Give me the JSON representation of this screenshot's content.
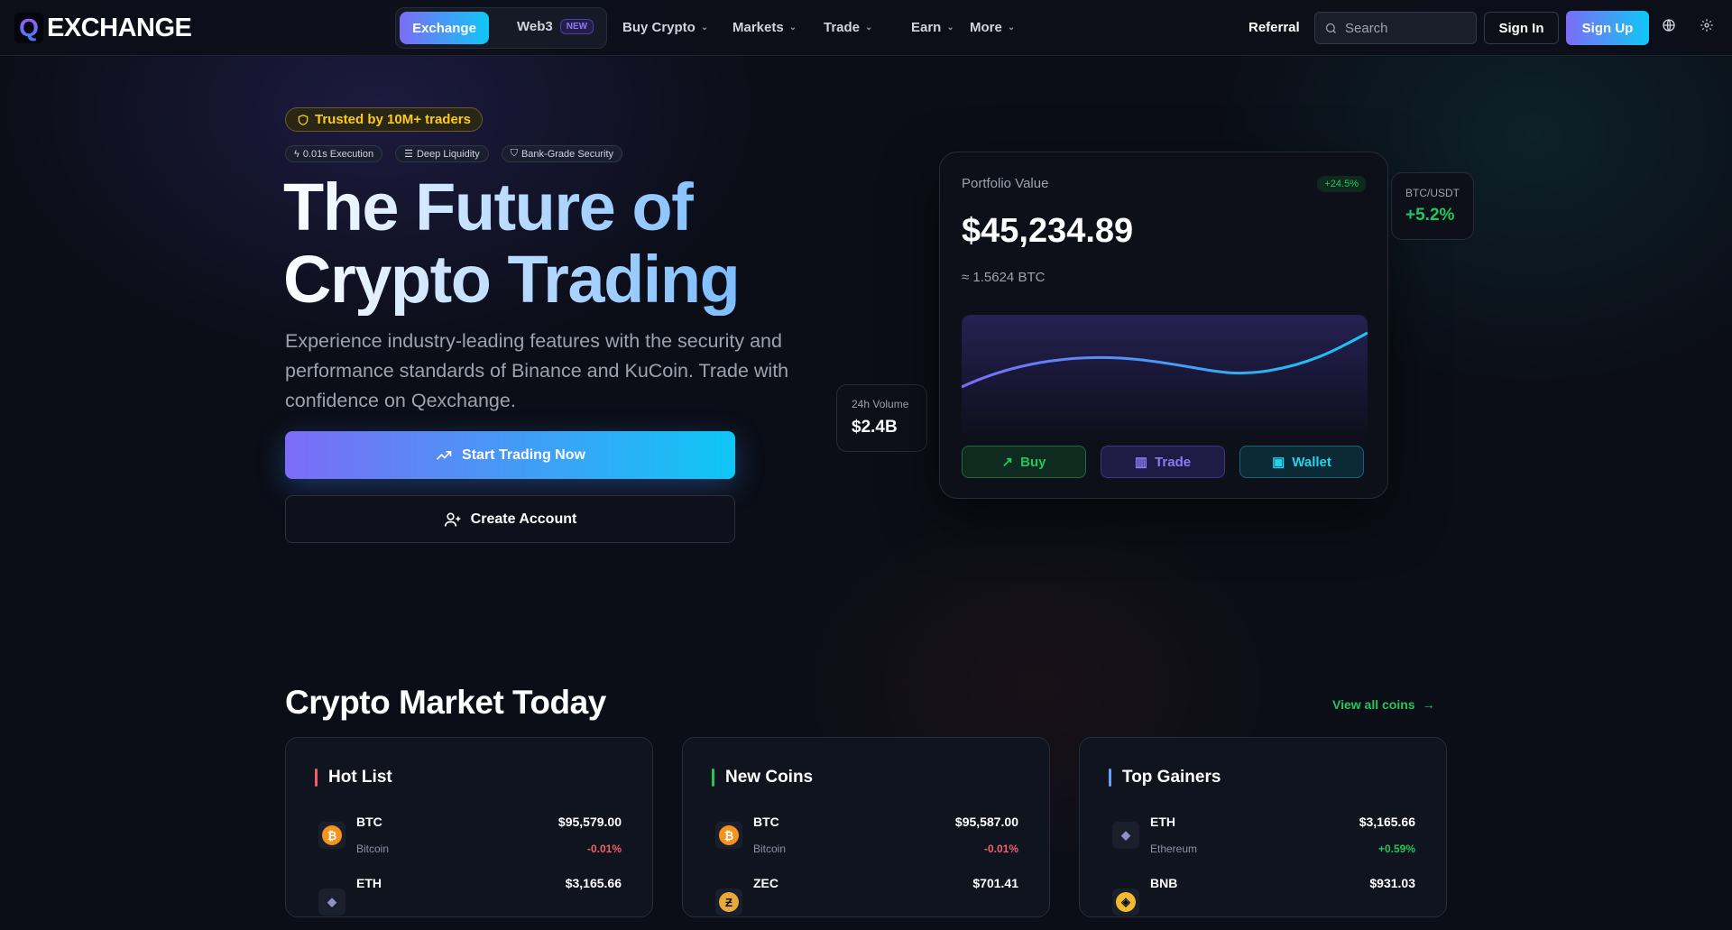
{
  "nav": {
    "logo_mark": "Q",
    "logo_text": "EXCHANGE",
    "tab_exchange": "Exchange",
    "tab_web3": "Web3",
    "web3_badge": "NEW",
    "menus": [
      {
        "label": "Buy Crypto"
      },
      {
        "label": "Markets"
      },
      {
        "label": "Trade"
      },
      {
        "label": "Earn"
      },
      {
        "label": "More"
      }
    ],
    "referral": "Referral",
    "search_placeholder": "Search",
    "sign_in": "Sign In",
    "sign_up": "Sign Up"
  },
  "hero": {
    "trusted": "Trusted by 10M+ traders",
    "chips": [
      "0.01s Execution",
      "Deep Liquidity",
      "Bank-Grade Security"
    ],
    "title_line1": "The Future of",
    "title_line2": "Crypto Trading",
    "description": "Experience industry-leading features with the security and performance standards of Binance and KuCoin. Trade with confidence on Qexchange.",
    "start_button": "Start Trading Now",
    "create_button": "Create Account"
  },
  "portfolio": {
    "label": "Portfolio Value",
    "change": "+24.5%",
    "value": "$45,234.89",
    "btc": "≈ 1.5624 BTC",
    "buy": "Buy",
    "trade": "Trade",
    "wallet": "Wallet"
  },
  "volume": {
    "label": "24h Volume",
    "value": "$2.4B"
  },
  "pair": {
    "label": "BTC/USDT",
    "change": "+5.2%"
  },
  "market": {
    "title": "Crypto Market Today",
    "view_all": "View all coins",
    "cards": [
      {
        "title": "Hot List",
        "accent": "#ef5f6b",
        "rows": [
          {
            "symbol": "BTC",
            "name": "Bitcoin",
            "price": "$95,579.00",
            "change": "-0.01%"
          },
          {
            "symbol": "ETH",
            "price": "$3,165.66"
          }
        ]
      },
      {
        "title": "New Coins",
        "accent": "#22c55e",
        "rows": [
          {
            "symbol": "BTC",
            "name": "Bitcoin",
            "price": "$95,587.00",
            "change": "-0.01%"
          },
          {
            "symbol": "ZEC",
            "price": "$701.41"
          }
        ]
      },
      {
        "title": "Top Gainers",
        "accent": "#60a5fa",
        "rows": [
          {
            "symbol": "ETH",
            "name": "Ethereum",
            "price": "$3,165.66",
            "change": "+0.59%"
          },
          {
            "symbol": "BNB",
            "price": "$931.03"
          }
        ]
      }
    ]
  },
  "colors": {
    "accent_gradient_start": "#7c6cf6",
    "accent_gradient_end": "#0fc7f6",
    "positive": "#22c55e",
    "negative": "#ef5f6b",
    "gold": "#facc15"
  }
}
